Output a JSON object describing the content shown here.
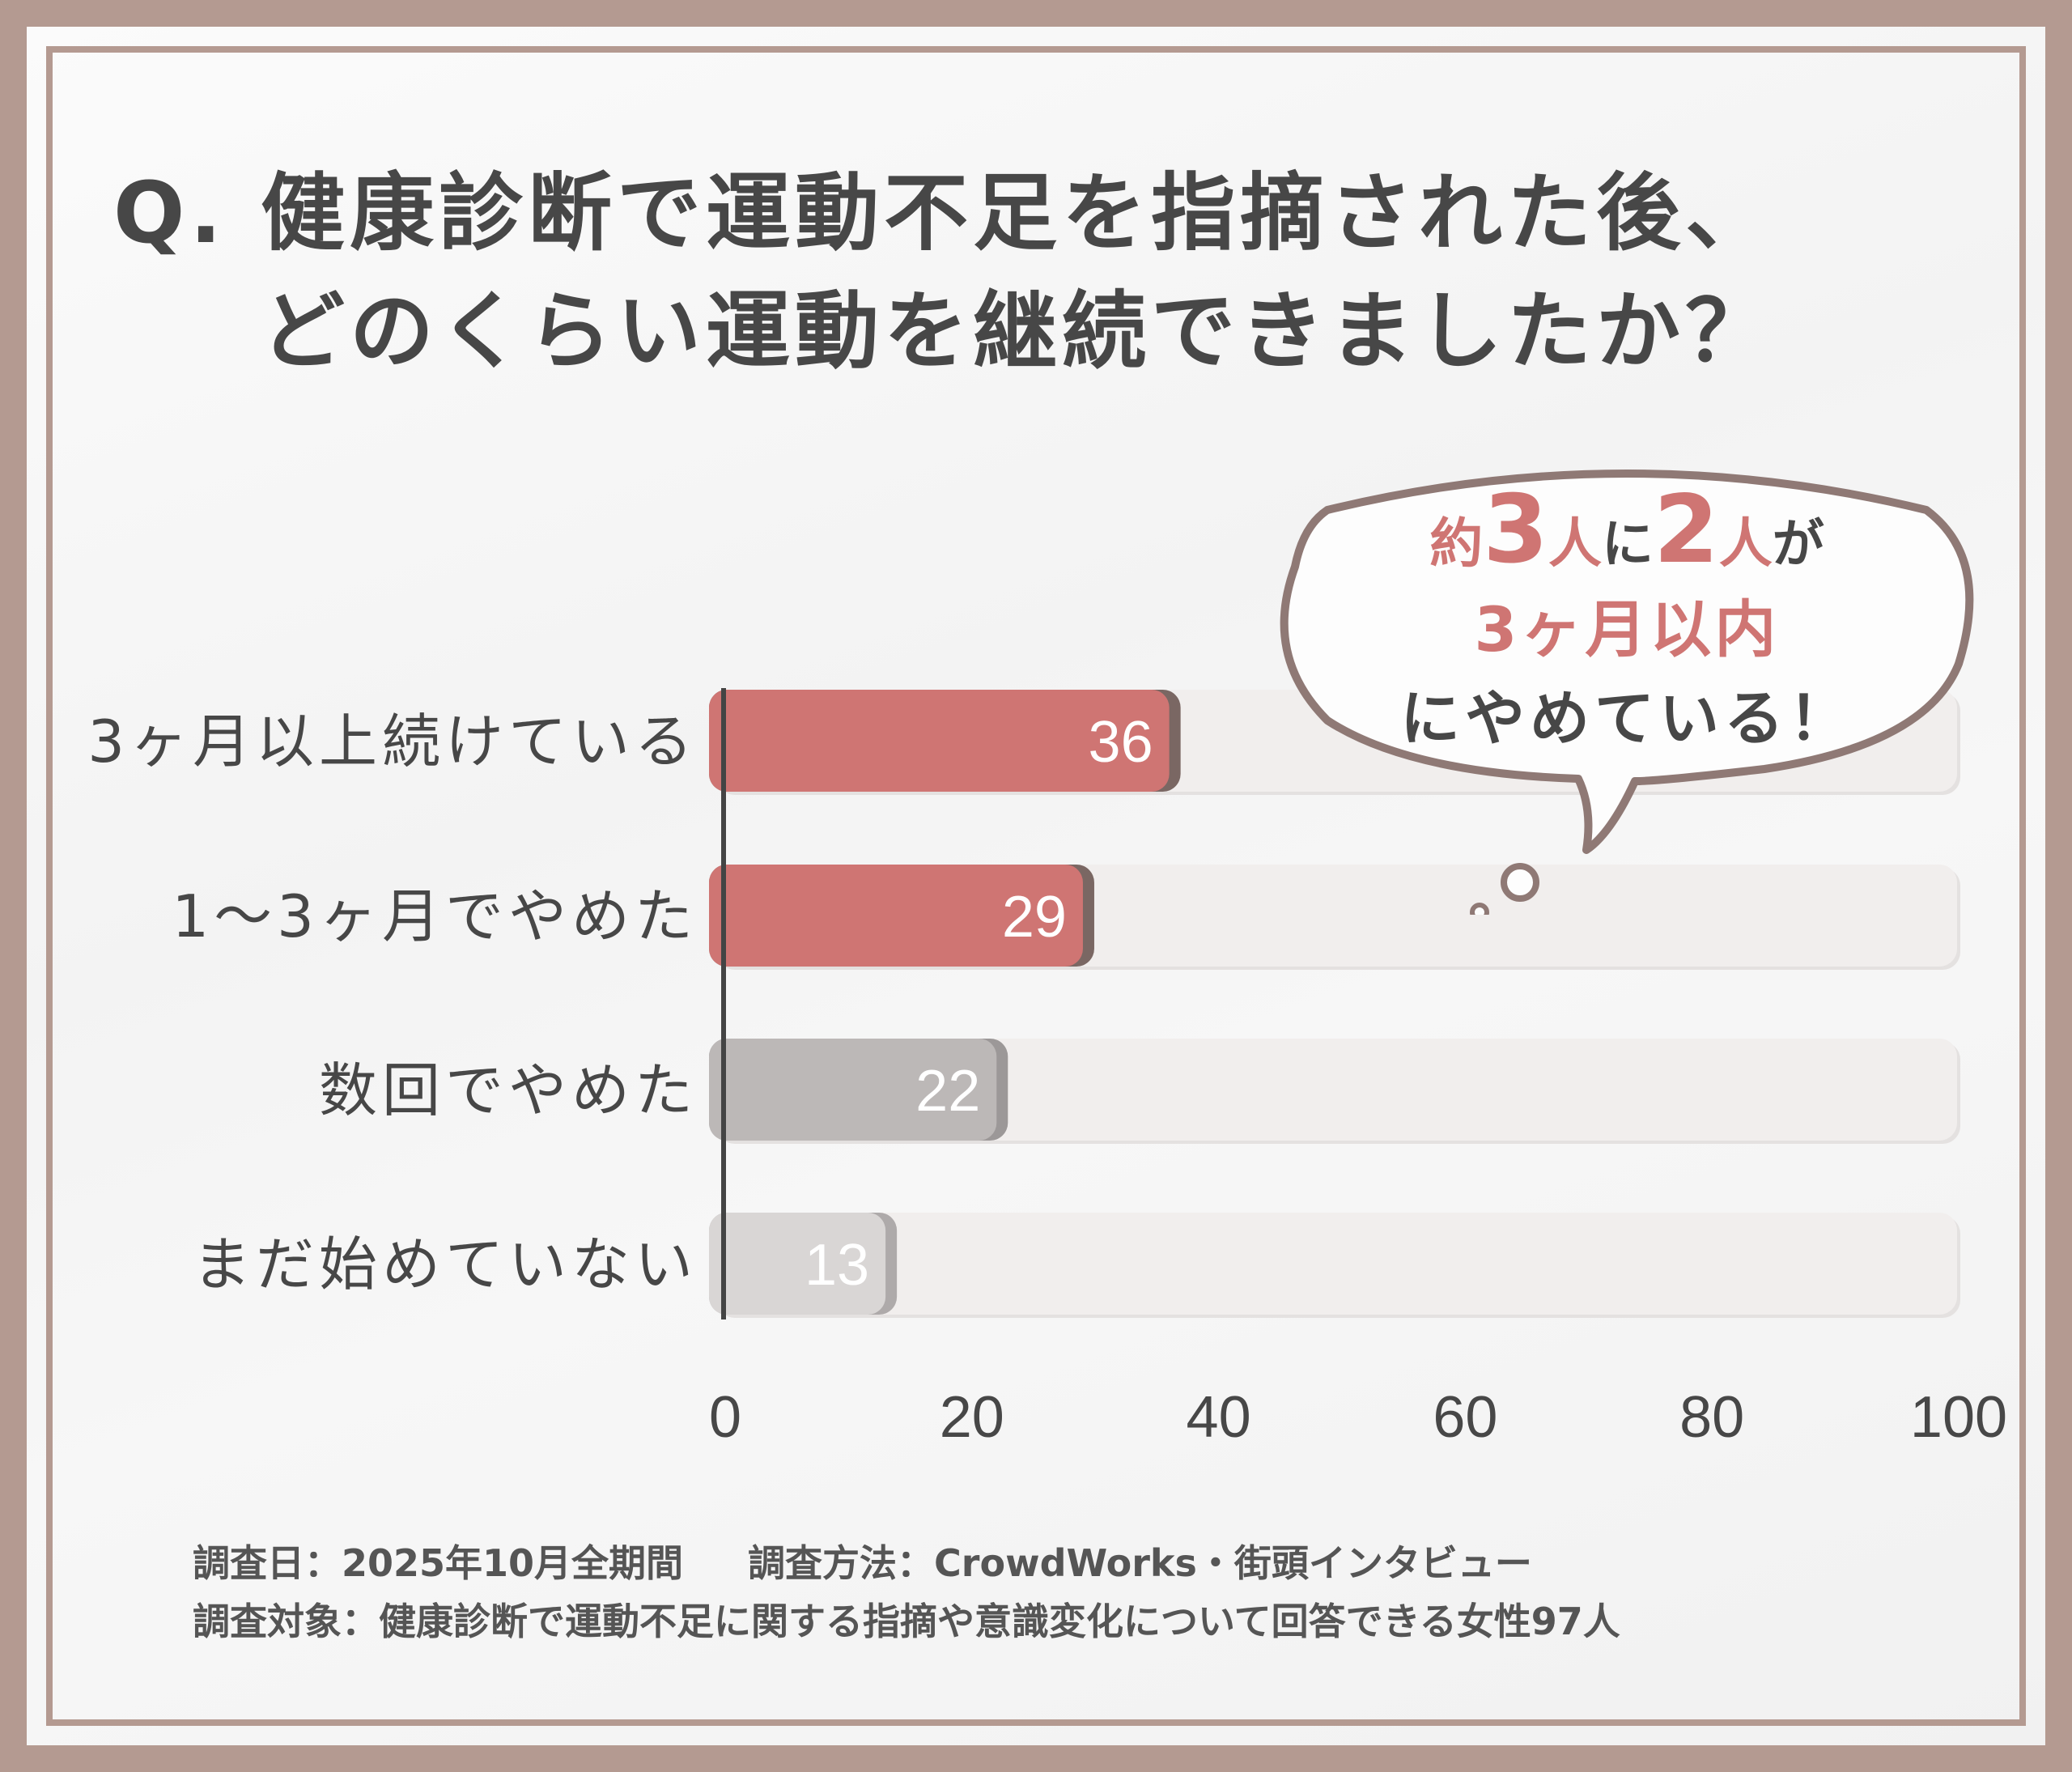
{
  "title": {
    "line1": "Q. 健康診断で運動不足を指摘された後、",
    "line2": "どのくらい運動を継続できましたか？"
  },
  "callout": {
    "part1": "約",
    "num1": "3",
    "part2": "人",
    "part3": "に",
    "num2": "2",
    "part4": "人",
    "part5": "が",
    "line2": "3ヶ月以内",
    "line3": "にやめている！"
  },
  "chart_data": {
    "type": "bar",
    "orientation": "horizontal",
    "categories": [
      "3ヶ月以上続けている",
      "1〜3ヶ月でやめた",
      "数回でやめた",
      "まだ始めていない"
    ],
    "values": [
      36,
      29,
      22,
      13
    ],
    "value_labels": [
      "36",
      "29",
      "22",
      "13"
    ],
    "xlim": [
      0,
      100
    ],
    "xticks": [
      "0",
      "20",
      "40",
      "60",
      "80",
      "100"
    ],
    "colors": [
      "#cf7573",
      "#cf7573",
      "#bcb8b7",
      "#d9d6d5"
    ],
    "shadow_colors": [
      "#7a6763",
      "#7a6763",
      "#9c9898",
      "#aeaaaa"
    ],
    "track_color": "#f1eeed",
    "grid": false
  },
  "footer": {
    "date": "調査日：2025年10月全期間",
    "method": "調査方法：CrowdWorks・街頭インタビュー",
    "target": "調査対象：健康診断で運動不足に関する指摘や意識変化について回答できる女性97人"
  }
}
